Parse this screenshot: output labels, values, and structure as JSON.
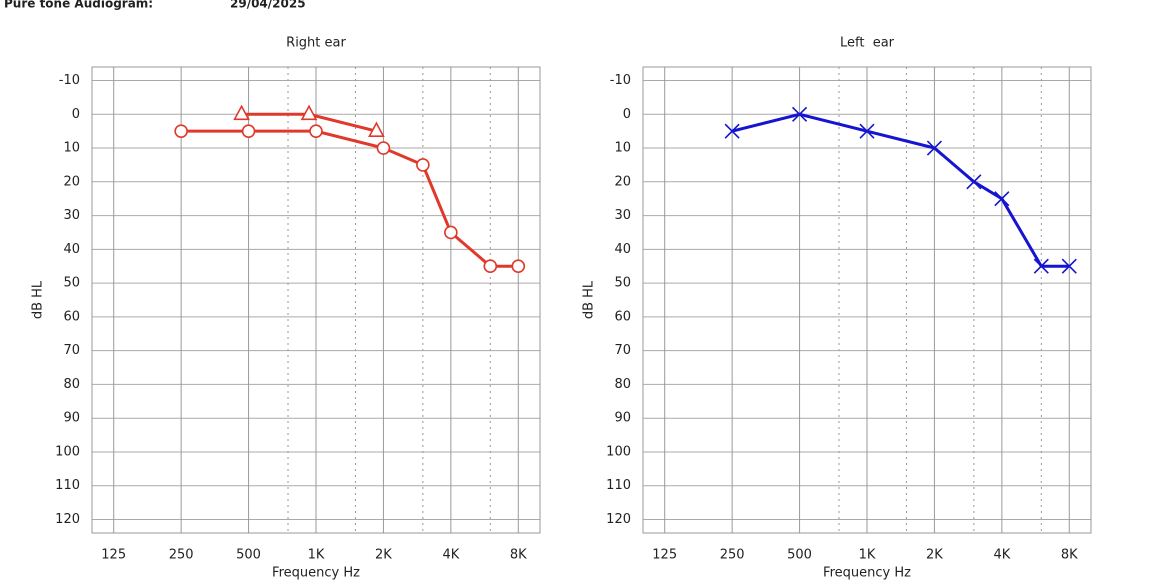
{
  "header": {
    "title": "Pure tone Audiogram:",
    "date": "29/04/2025"
  },
  "chart_data": [
    {
      "type": "line",
      "title": "Right ear",
      "x_label": "Frequency Hz",
      "y_label": "dB HL",
      "xscale": "log",
      "y_inverted": true,
      "grid": true,
      "xlim": [
        100,
        10000
      ],
      "ylim": [
        -14,
        124
      ],
      "xticks": [
        125,
        250,
        500,
        {
          "value": 1000,
          "label": "1K"
        },
        {
          "value": 2000,
          "label": "2K"
        },
        {
          "value": 4000,
          "label": "4K"
        },
        {
          "value": 8000,
          "label": "8K"
        }
      ],
      "minor_xticks": [
        750,
        1500,
        3000,
        6000
      ],
      "yticks": [
        -10,
        0,
        10,
        20,
        30,
        40,
        50,
        60,
        70,
        80,
        90,
        100,
        110,
        120
      ],
      "series": [
        {
          "color": "#e0392b",
          "marker": "circle",
          "x": [
            250,
            500,
            1000,
            2000,
            3000,
            4000,
            6000,
            8000
          ],
          "values": [
            5,
            5,
            5,
            10,
            15,
            35,
            45,
            45
          ]
        },
        {
          "color": "#e0392b",
          "marker": "triangle",
          "x": [
            500,
            1000,
            2000
          ],
          "values": [
            0,
            0,
            5
          ]
        }
      ]
    },
    {
      "type": "line",
      "title": "Left  ear",
      "x_label": "Frequency Hz",
      "y_label": "dB HL",
      "xscale": "log",
      "y_inverted": true,
      "grid": true,
      "xlim": [
        100,
        10000
      ],
      "ylim": [
        -14,
        124
      ],
      "xticks": [
        125,
        250,
        500,
        {
          "value": 1000,
          "label": "1K"
        },
        {
          "value": 2000,
          "label": "2K"
        },
        {
          "value": 4000,
          "label": "4K"
        },
        {
          "value": 8000,
          "label": "8K"
        }
      ],
      "minor_xticks": [
        750,
        1500,
        3000,
        6000
      ],
      "yticks": [
        -10,
        0,
        10,
        20,
        30,
        40,
        50,
        60,
        70,
        80,
        90,
        100,
        110,
        120
      ],
      "series": [
        {
          "color": "#1414d2",
          "marker": "x",
          "x": [
            250,
            500,
            1000,
            2000,
            3000,
            4000,
            6000,
            8000
          ],
          "values": [
            5,
            0,
            5,
            10,
            20,
            25,
            45,
            45
          ]
        }
      ]
    }
  ]
}
